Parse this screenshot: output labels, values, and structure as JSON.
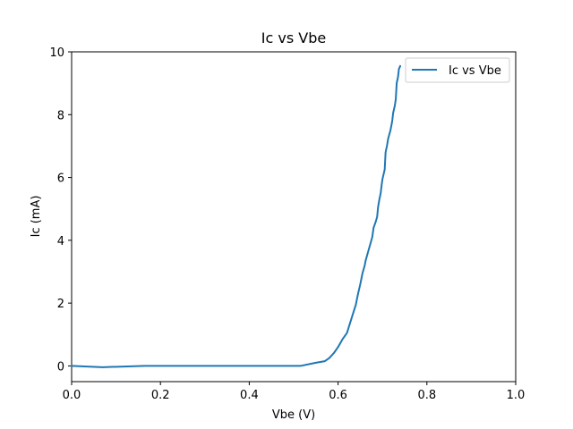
{
  "chart_data": {
    "type": "line",
    "title": "Ic vs Vbe",
    "xlabel": "Vbe (V)",
    "ylabel": "Ic (mA)",
    "xlim": [
      0,
      1.0
    ],
    "ylim": [
      -0.5,
      10
    ],
    "xticks": [
      "0.0",
      "0.2",
      "0.4",
      "0.6",
      "0.8",
      "1.0"
    ],
    "xtick_values": [
      0,
      0.2,
      0.4,
      0.6,
      0.8,
      1.0
    ],
    "yticks": [
      "0",
      "2",
      "4",
      "6",
      "8",
      "10"
    ],
    "ytick_values": [
      0,
      2,
      4,
      6,
      8,
      10
    ],
    "grid": false,
    "legend_position": "top-right",
    "series": [
      {
        "name": "Ic vs Vbe",
        "color": "#1f77b4",
        "x": [
          0.0,
          0.07,
          0.165,
          0.25,
          0.35,
          0.45,
          0.515,
          0.55,
          0.57,
          0.58,
          0.59,
          0.6,
          0.61,
          0.62,
          0.63,
          0.64,
          0.645,
          0.65,
          0.655,
          0.66,
          0.662,
          0.667,
          0.672,
          0.677,
          0.68,
          0.685,
          0.688,
          0.69,
          0.693,
          0.696,
          0.698,
          0.7,
          0.705,
          0.707,
          0.71,
          0.713,
          0.718,
          0.722,
          0.724,
          0.728,
          0.73,
          0.732,
          0.735,
          0.737,
          0.74
        ],
        "y": [
          0.0,
          -0.04,
          0.0,
          0.0,
          0.0,
          0.0,
          0.0,
          0.1,
          0.15,
          0.25,
          0.4,
          0.6,
          0.85,
          1.05,
          1.5,
          1.95,
          2.3,
          2.6,
          2.95,
          3.2,
          3.35,
          3.6,
          3.85,
          4.1,
          4.4,
          4.6,
          4.75,
          5.05,
          5.3,
          5.5,
          5.75,
          5.95,
          6.25,
          6.8,
          7.0,
          7.25,
          7.5,
          7.8,
          8.05,
          8.3,
          8.5,
          9.0,
          9.2,
          9.45,
          9.55
        ]
      }
    ]
  }
}
